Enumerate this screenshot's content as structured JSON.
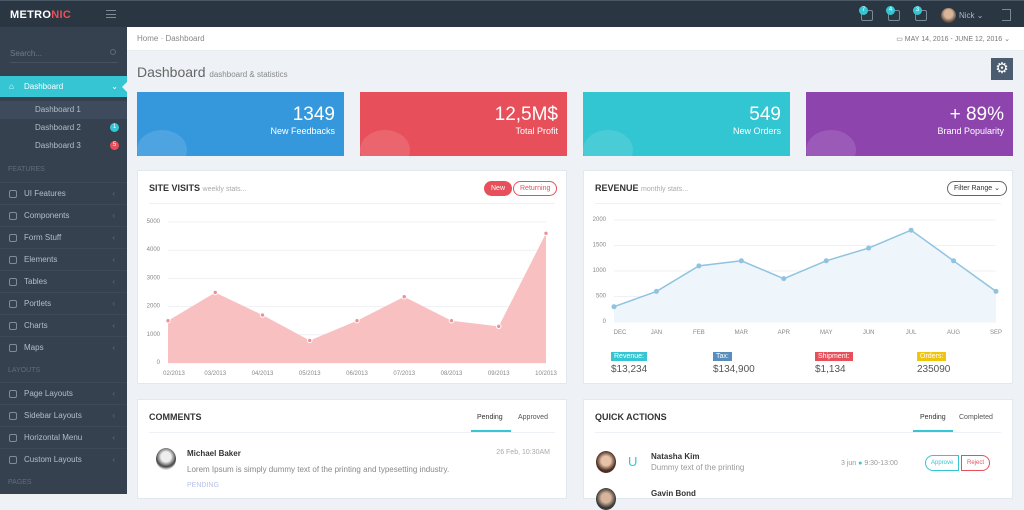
{
  "header": {
    "logo_a": "METRO",
    "logo_b": "NIC",
    "notifications": [
      {
        "icon": "bell-icon",
        "count": "7"
      },
      {
        "icon": "envelope-icon",
        "count": "4"
      },
      {
        "icon": "calendar-icon",
        "count": "3"
      }
    ],
    "user": "Nick"
  },
  "sidebar": {
    "search_placeholder": "Search...",
    "active": "Dashboard",
    "sub": [
      {
        "label": "Dashboard 1"
      },
      {
        "label": "Dashboard 2",
        "badge": "1"
      },
      {
        "label": "Dashboard 3",
        "badge": "5"
      }
    ],
    "sections": [
      "FEATURES",
      "LAYOUTS",
      "PAGES"
    ],
    "features": [
      {
        "label": "UI Features",
        "icon": "diamond-icon"
      },
      {
        "label": "Components",
        "icon": "puzzle-icon"
      },
      {
        "label": "Form Stuff",
        "icon": "settings-icon"
      },
      {
        "label": "Elements",
        "icon": "bulb-icon"
      },
      {
        "label": "Tables",
        "icon": "briefcase-icon"
      },
      {
        "label": "Portlets",
        "icon": "wallet-icon"
      },
      {
        "label": "Charts",
        "icon": "bar-chart-icon"
      },
      {
        "label": "Maps",
        "icon": "pin-icon"
      }
    ],
    "layouts": [
      {
        "label": "Page Layouts",
        "icon": "layers-icon"
      },
      {
        "label": "Sidebar Layouts",
        "icon": "feed-icon"
      },
      {
        "label": "Horizontal Menu",
        "icon": "paper-plane-icon"
      },
      {
        "label": "Custom Layouts",
        "icon": "wrench-icon"
      }
    ]
  },
  "breadcrumb": [
    "Home",
    "Dashboard"
  ],
  "date_range": "MAY 14, 2016 - JUNE 12, 2016",
  "page": {
    "title": "Dashboard",
    "subtitle": "dashboard & statistics"
  },
  "tiles": [
    {
      "value": "1349",
      "label": "New Feedbacks",
      "color": "#3598dc"
    },
    {
      "value": "12,5M$",
      "label": "Total Profit",
      "color": "#e7505a"
    },
    {
      "value": "549",
      "label": "New Orders",
      "color": "#32c5d2"
    },
    {
      "value": "+ 89%",
      "label": "Brand Popularity",
      "color": "#8e44ad"
    }
  ],
  "site_visits": {
    "title": "SITE VISITS",
    "subtitle": "weekly stats...",
    "btn_new": "New",
    "btn_returning": "Returning"
  },
  "revenue": {
    "title": "REVENUE",
    "subtitle": "monthly stats...",
    "filter": "Filter Range",
    "stats": [
      {
        "label": "Revenue:",
        "value": "$13,234",
        "color": "#36c6d3"
      },
      {
        "label": "Tax:",
        "value": "$134,900",
        "color": "#578ebe"
      },
      {
        "label": "Shipment:",
        "value": "$1,134",
        "color": "#e7505a"
      },
      {
        "label": "Orders:",
        "value": "235090",
        "color": "#f1c40f"
      }
    ]
  },
  "chart_data": [
    {
      "type": "area",
      "categories": [
        "02/2013",
        "03/2013",
        "04/2013",
        "05/2013",
        "06/2013",
        "07/2013",
        "08/2013",
        "09/2013",
        "10/2013"
      ],
      "values": [
        1500,
        2500,
        1700,
        800,
        1500,
        2350,
        1500,
        1300,
        4600
      ],
      "ylim": [
        0,
        5000
      ],
      "yticks": [
        "0",
        "1000",
        "2000",
        "3000",
        "4000",
        "5000"
      ],
      "color": "#f9c0c2",
      "grid": true
    },
    {
      "type": "area",
      "categories": [
        "DEC",
        "JAN",
        "FEB",
        "MAR",
        "APR",
        "MAY",
        "JUN",
        "JUL",
        "AUG",
        "SEP"
      ],
      "values": [
        300,
        600,
        1100,
        1200,
        850,
        1200,
        1450,
        1800,
        1200,
        600
      ],
      "ylim": [
        0,
        2000
      ],
      "yticks": [
        "0",
        "500",
        "1000",
        "1500",
        "2000"
      ],
      "color": "#8fc3e0",
      "grid": true
    }
  ],
  "comments": {
    "title": "COMMENTS",
    "tabs": [
      "Pending",
      "Approved"
    ],
    "items": [
      {
        "name": "Michael Baker",
        "date": "26 Feb, 10:30AM",
        "text": "Lorem Ipsum is simply dummy text of the printing and typesetting industry.",
        "status": "PENDING"
      }
    ]
  },
  "quick_actions": {
    "title": "QUICK ACTIONS",
    "tabs": [
      "Pending",
      "Completed"
    ],
    "items": [
      {
        "name": "Natasha Kim",
        "desc": "Dummy text of the printing",
        "date": "3 jun",
        "time": "9:30-13:00",
        "approve": "Approve",
        "reject": "Reject"
      },
      {
        "name": "Gavin Bond"
      }
    ]
  }
}
